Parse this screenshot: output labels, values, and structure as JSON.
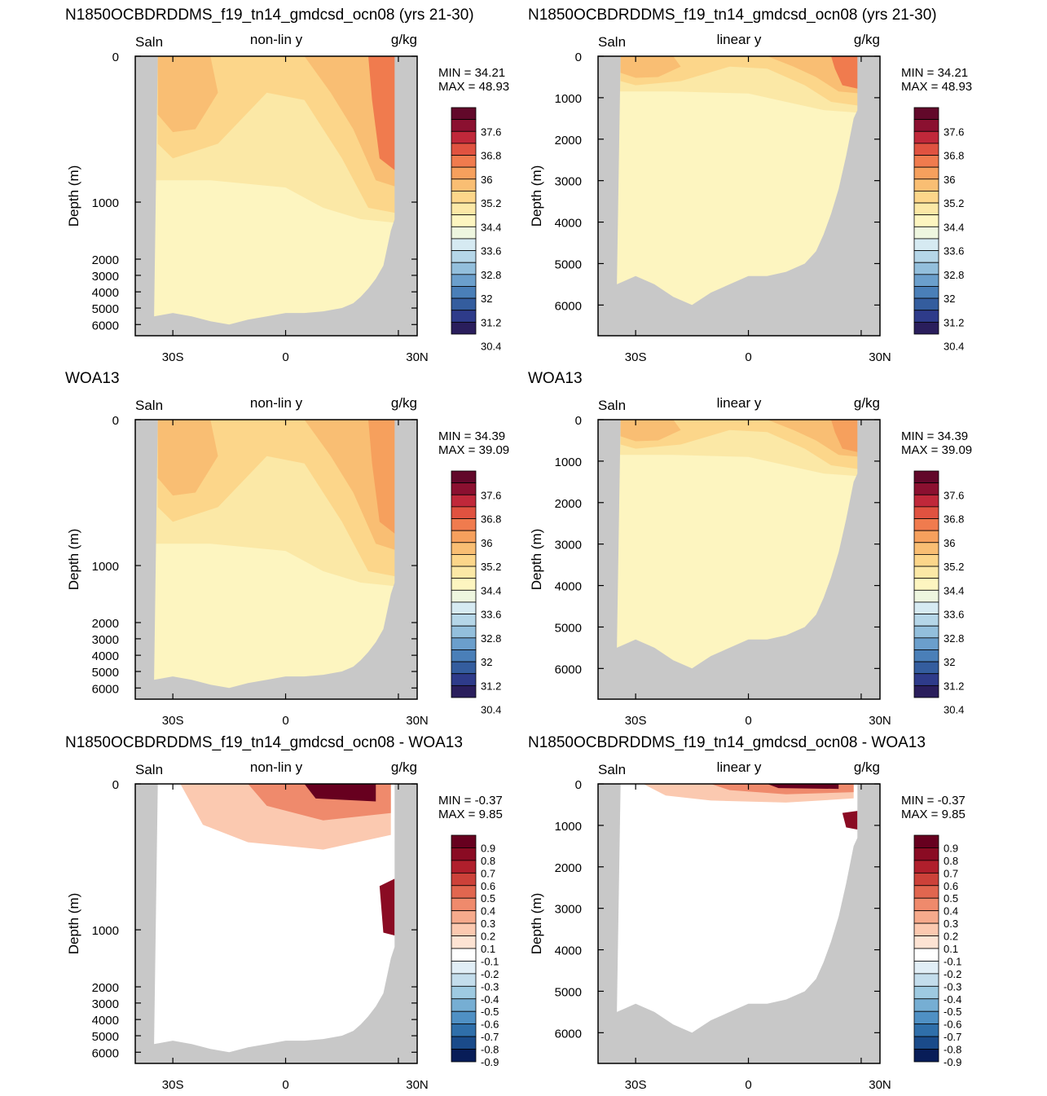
{
  "colors": {
    "land": "#c8c8c8",
    "salinity_levels": [
      "#2a1e5c",
      "#2e3b8a",
      "#345d9e",
      "#4a7fb8",
      "#6b9fcc",
      "#93bfdc",
      "#b5d6e8",
      "#d6eaf2",
      "#eef6df",
      "#fdf5c0",
      "#fbe8a6",
      "#fcd68a",
      "#f9be73",
      "#f6a05d",
      "#f07b4e",
      "#e05240",
      "#c0283a",
      "#8b1030",
      "#62082a"
    ],
    "difference_levels": [
      "#081d58",
      "#1a4b8a",
      "#2f6faa",
      "#4f90c4",
      "#76aed3",
      "#9ecae1",
      "#c3ddec",
      "#e1eef6",
      "#ffffff",
      "#fde3d3",
      "#fbc9b0",
      "#f6aa8c",
      "#ef8a6c",
      "#e1664f",
      "#cc4139",
      "#b01f2c",
      "#8a0b23",
      "#67001f"
    ]
  },
  "chart_data": [
    {
      "type": "contour",
      "title": "N1850OCBDRDDMS_f19_tn14_gmdcsd_ocn08 (yrs 21-30)",
      "label_left": "Saln",
      "label_center": "non-lin y",
      "label_right": "g/kg",
      "ylabel": "Depth (m)",
      "x_ticks": [
        "30S",
        "0",
        "30N"
      ],
      "y_ticks": [
        "0",
        "1000",
        "2000",
        "3000",
        "4000",
        "5000",
        "6000"
      ],
      "min_label": "MIN = ",
      "min_value": "34.21",
      "max_label": "MAX = ",
      "max_value": "48.93",
      "colorbar": {
        "levels": [
          30.0,
          30.4,
          30.8,
          31.2,
          31.6,
          32.0,
          32.4,
          32.8,
          33.2,
          33.6,
          34.0,
          34.4,
          34.8,
          35.2,
          35.6,
          36.0,
          36.4,
          36.8,
          37.2,
          37.6,
          38.0
        ],
        "labels": [
          "37.6",
          "36.8",
          "36",
          "35.2",
          "34.4",
          "33.6",
          "32.8",
          "32",
          "31.2",
          "30.4"
        ]
      }
    },
    {
      "type": "contour",
      "title": "N1850OCBDRDDMS_f19_tn14_gmdcsd_ocn08 (yrs 21-30)",
      "label_left": "Saln",
      "label_center": "linear y",
      "label_right": "g/kg",
      "ylabel": "Depth (m)",
      "x_ticks": [
        "30S",
        "0",
        "30N"
      ],
      "y_ticks": [
        "0",
        "1000",
        "2000",
        "3000",
        "4000",
        "5000",
        "6000"
      ],
      "min_label": "MIN = ",
      "min_value": "34.21",
      "max_label": "MAX = ",
      "max_value": "48.93",
      "colorbar": {
        "labels": [
          "37.6",
          "36.8",
          "36",
          "35.2",
          "34.4",
          "33.6",
          "32.8",
          "32",
          "31.2",
          "30.4"
        ]
      }
    },
    {
      "type": "contour",
      "title": "WOA13",
      "label_left": "Saln",
      "label_center": "non-lin y",
      "label_right": "g/kg",
      "ylabel": "Depth (m)",
      "x_ticks": [
        "30S",
        "0",
        "30N"
      ],
      "y_ticks": [
        "0",
        "1000",
        "2000",
        "3000",
        "4000",
        "5000",
        "6000"
      ],
      "min_label": "MIN = ",
      "min_value": "34.39",
      "max_label": "MAX = ",
      "max_value": "39.09",
      "colorbar": {
        "labels": [
          "37.6",
          "36.8",
          "36",
          "35.2",
          "34.4",
          "33.6",
          "32.8",
          "32",
          "31.2",
          "30.4"
        ]
      }
    },
    {
      "type": "contour",
      "title": "WOA13",
      "label_left": "Saln",
      "label_center": "linear y",
      "label_right": "g/kg",
      "ylabel": "Depth (m)",
      "x_ticks": [
        "30S",
        "0",
        "30N"
      ],
      "y_ticks": [
        "0",
        "1000",
        "2000",
        "3000",
        "4000",
        "5000",
        "6000"
      ],
      "min_label": "MIN = ",
      "min_value": "34.39",
      "max_label": "MAX = ",
      "max_value": "39.09",
      "colorbar": {
        "labels": [
          "37.6",
          "36.8",
          "36",
          "35.2",
          "34.4",
          "33.6",
          "32.8",
          "32",
          "31.2",
          "30.4"
        ]
      }
    },
    {
      "type": "contour",
      "title": "N1850OCBDRDDMS_f19_tn14_gmdcsd_ocn08 - WOA13",
      "label_left": "Saln",
      "label_center": "non-lin y",
      "label_right": "g/kg",
      "ylabel": "Depth (m)",
      "x_ticks": [
        "30S",
        "0",
        "30N"
      ],
      "y_ticks": [
        "0",
        "1000",
        "2000",
        "3000",
        "4000",
        "5000",
        "6000"
      ],
      "min_label": "MIN = ",
      "min_value": "-0.37",
      "max_label": "MAX = ",
      "max_value": "9.85",
      "colorbar": {
        "labels": [
          "0.9",
          "0.8",
          "0.7",
          "0.6",
          "0.5",
          "0.4",
          "0.3",
          "0.2",
          "0.1",
          "-0.1",
          "-0.2",
          "-0.3",
          "-0.4",
          "-0.5",
          "-0.6",
          "-0.7",
          "-0.8",
          "-0.9"
        ]
      }
    },
    {
      "type": "contour",
      "title": "N1850OCBDRDDMS_f19_tn14_gmdcsd_ocn08 - WOA13",
      "label_left": "Saln",
      "label_center": "linear y",
      "label_right": "g/kg",
      "ylabel": "Depth (m)",
      "x_ticks": [
        "30S",
        "0",
        "30N"
      ],
      "y_ticks": [
        "0",
        "1000",
        "2000",
        "3000",
        "4000",
        "5000",
        "6000"
      ],
      "min_label": "MIN = ",
      "min_value": "-0.37",
      "max_label": "MAX = ",
      "max_value": "9.85",
      "colorbar": {
        "labels": [
          "0.9",
          "0.8",
          "0.7",
          "0.6",
          "0.5",
          "0.4",
          "0.3",
          "0.2",
          "0.1",
          "-0.1",
          "-0.2",
          "-0.3",
          "-0.4",
          "-0.5",
          "-0.6",
          "-0.7",
          "-0.8",
          "-0.9"
        ]
      }
    }
  ]
}
